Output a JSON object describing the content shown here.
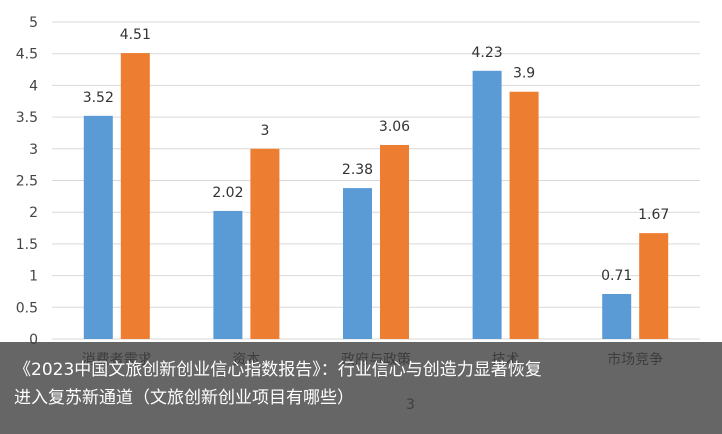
{
  "chart_data": {
    "type": "bar",
    "categories": [
      "消费者需求",
      "资本",
      "政府与政策",
      "技术",
      "市场竞争"
    ],
    "series": [
      {
        "color": "#5B9BD5",
        "values": [
          3.52,
          2.02,
          2.38,
          4.23,
          0.71
        ]
      },
      {
        "color": "#ED7D31",
        "values": [
          4.51,
          3,
          3.06,
          3.9,
          1.67
        ]
      }
    ],
    "value_labels": [
      [
        "3.52",
        "2.02",
        "2.38",
        "4.23",
        "0.71"
      ],
      [
        "4.51",
        "3",
        "3.06",
        "3.9",
        "1.67"
      ]
    ],
    "ylim": [
      0,
      5
    ],
    "yticks": [
      "0",
      "0.5",
      "1",
      "1.5",
      "2",
      "2.5",
      "3",
      "3.5",
      "4",
      "4.5",
      "5"
    ],
    "grid": true,
    "legend_partial": "3"
  },
  "caption": {
    "line1": "《2023中国文旅创新创业信心指数报告》：行业信心与创造力显著恢复",
    "line2": "进入复苏新通道（文旅创新创业项目有哪些）"
  }
}
